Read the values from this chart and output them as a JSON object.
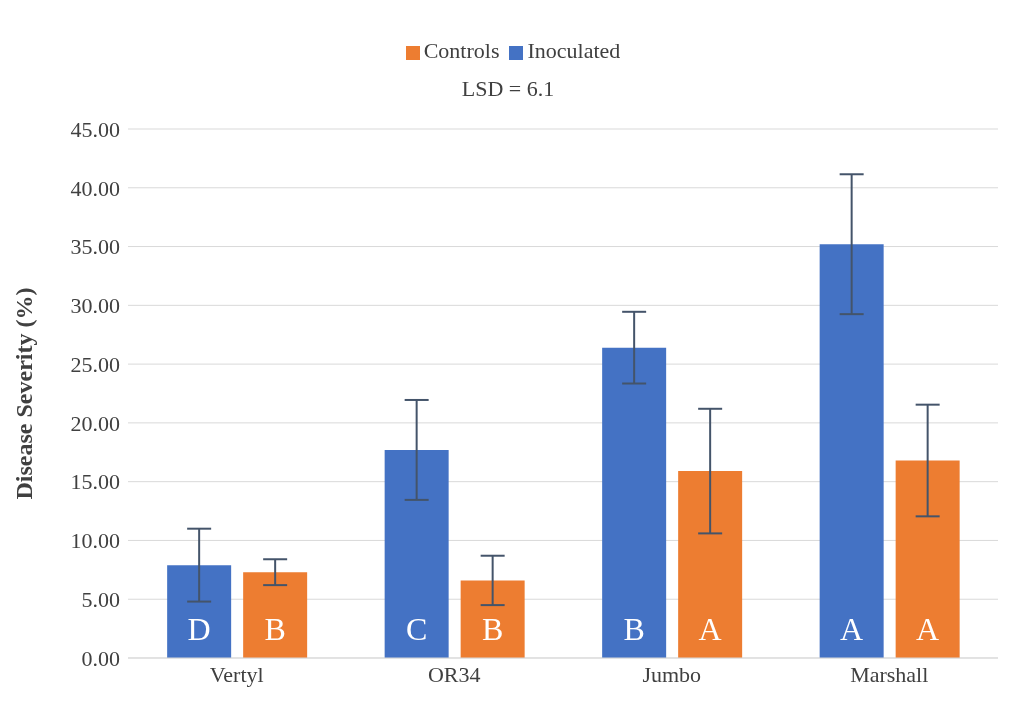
{
  "chart_data": {
    "type": "bar",
    "ylabel": "Disease Severity (%)",
    "categories": [
      "Vertyl",
      "OR34",
      "Jumbo",
      "Marshall"
    ],
    "series": [
      {
        "name": "Inoculated",
        "color": "#4472c4",
        "values": [
          7.9,
          17.7,
          26.4,
          35.2
        ],
        "errors": [
          3.1,
          4.25,
          3.05,
          5.95
        ],
        "value_labels": [
          "D",
          "C",
          "B",
          "A"
        ]
      },
      {
        "name": "Controls",
        "color": "#ed7d31",
        "values": [
          7.3,
          6.6,
          15.9,
          16.8
        ],
        "errors": [
          1.1,
          2.1,
          5.3,
          4.75
        ],
        "value_labels": [
          "B",
          "B",
          "A",
          "A"
        ]
      }
    ],
    "ylim": [
      0,
      45
    ],
    "yticks": [
      {
        "value": 0,
        "label": "0.00"
      },
      {
        "value": 5,
        "label": "5.00"
      },
      {
        "value": 10,
        "label": "10.00"
      },
      {
        "value": 15,
        "label": "15.00"
      },
      {
        "value": 20,
        "label": "20.00"
      },
      {
        "value": 25,
        "label": "25.00"
      },
      {
        "value": 30,
        "label": "30.00"
      },
      {
        "value": 35,
        "label": "35.00"
      },
      {
        "value": 40,
        "label": "40.00"
      },
      {
        "value": 45,
        "label": "45.00"
      }
    ],
    "annotations": [
      "LSD = 6.1"
    ],
    "grid": "y",
    "legend": "top"
  }
}
